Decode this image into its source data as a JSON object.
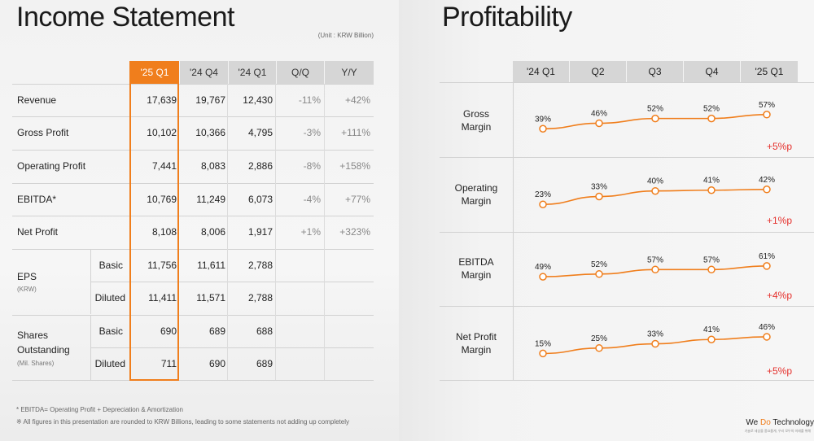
{
  "income": {
    "title": "Income Statement",
    "unit": "(Unit : KRW Billion)",
    "headers": [
      "'25 Q1",
      "'24 Q4",
      "'24 Q1",
      "Q/Q",
      "Y/Y"
    ],
    "rows": [
      {
        "label": "Revenue",
        "values": [
          "17,639",
          "19,767",
          "12,430",
          "-11%",
          "+42%"
        ]
      },
      {
        "label": "Gross Profit",
        "values": [
          "10,102",
          "10,366",
          "4,795",
          "-3%",
          "+111%"
        ]
      },
      {
        "label": "Operating Profit",
        "values": [
          "7,441",
          "8,083",
          "2,886",
          "-8%",
          "+158%"
        ]
      },
      {
        "label": "EBITDA*",
        "values": [
          "10,769",
          "11,249",
          "6,073",
          "-4%",
          "+77%"
        ]
      },
      {
        "label": "Net Profit",
        "values": [
          "8,108",
          "8,006",
          "1,917",
          "+1%",
          "+323%"
        ]
      }
    ],
    "eps": {
      "label": "EPS",
      "note": "(KRW)",
      "basic_label": "Basic",
      "basic": [
        "11,756",
        "11,611",
        "2,788"
      ],
      "diluted_label": "Diluted",
      "diluted": [
        "11,411",
        "11,571",
        "2,788"
      ]
    },
    "shares": {
      "label_line1": "Shares",
      "label_line2": "Outstanding",
      "note": "(Mil. Shares)",
      "basic_label": "Basic",
      "basic": [
        "690",
        "689",
        "688"
      ],
      "diluted_label": "Diluted",
      "diluted": [
        "711",
        "690",
        "689"
      ]
    },
    "footnotes": [
      "* EBITDA= Operating Profit + Depreciation & Amortization",
      "※ All figures in this presentation are rounded to KRW Billions, leading to some statements not adding up completely"
    ]
  },
  "profitability": {
    "title": "Profitability",
    "headers": [
      "'24 Q1",
      "Q2",
      "Q3",
      "Q4",
      "'25 Q1"
    ],
    "rows": [
      {
        "label_line1": "Gross",
        "label_line2": "Margin",
        "labels": [
          "39%",
          "46%",
          "52%",
          "52%",
          "57%"
        ],
        "delta": "+5%p"
      },
      {
        "label_line1": "Operating",
        "label_line2": "Margin",
        "labels": [
          "23%",
          "33%",
          "40%",
          "41%",
          "42%"
        ],
        "delta": "+1%p"
      },
      {
        "label_line1": "EBITDA",
        "label_line2": "Margin",
        "labels": [
          "49%",
          "52%",
          "57%",
          "57%",
          "61%"
        ],
        "delta": "+4%p"
      },
      {
        "label_line1": "Net Profit",
        "label_line2": "Margin",
        "labels": [
          "15%",
          "25%",
          "33%",
          "41%",
          "46%"
        ],
        "delta": "+5%p"
      }
    ]
  },
  "chart_data": {
    "type": "line",
    "x": [
      "'24 Q1",
      "Q2",
      "Q3",
      "Q4",
      "'25 Q1"
    ],
    "series": [
      {
        "name": "Gross Margin",
        "values": [
          39,
          46,
          52,
          52,
          57
        ]
      },
      {
        "name": "Operating Margin",
        "values": [
          23,
          33,
          40,
          41,
          42
        ]
      },
      {
        "name": "EBITDA Margin",
        "values": [
          49,
          52,
          57,
          57,
          61
        ]
      },
      {
        "name": "Net Profit Margin",
        "values": [
          15,
          25,
          33,
          41,
          46
        ]
      }
    ],
    "line_color": "#f07e1c"
  },
  "brand": {
    "pre": "We ",
    "accent": "Do",
    "post": " Technology",
    "tagline": "기술로 세상을 풍요롭게, 우리 모두의 미래를 위해"
  },
  "colors": {
    "accent": "#f07e1c",
    "delta": "#e5322e",
    "header_bg": "#d6d6d6"
  }
}
